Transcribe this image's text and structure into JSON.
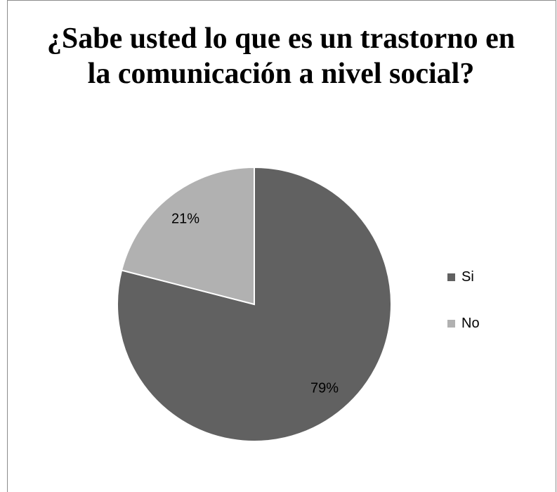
{
  "chart_data": {
    "type": "pie",
    "title": "¿Sabe usted lo que es un trastorno en la comunicación a nivel social?",
    "categories": [
      "Si",
      "No"
    ],
    "values": [
      79,
      21
    ],
    "value_labels": [
      "79%",
      "21%"
    ],
    "colors": [
      "#616161",
      "#b1b1b1"
    ],
    "start_angle": "12 o'clock, clockwise",
    "legend_position": "right"
  },
  "legend": {
    "items": [
      {
        "label": "Si",
        "color": "#616161"
      },
      {
        "label": "No",
        "color": "#b1b1b1"
      }
    ]
  }
}
